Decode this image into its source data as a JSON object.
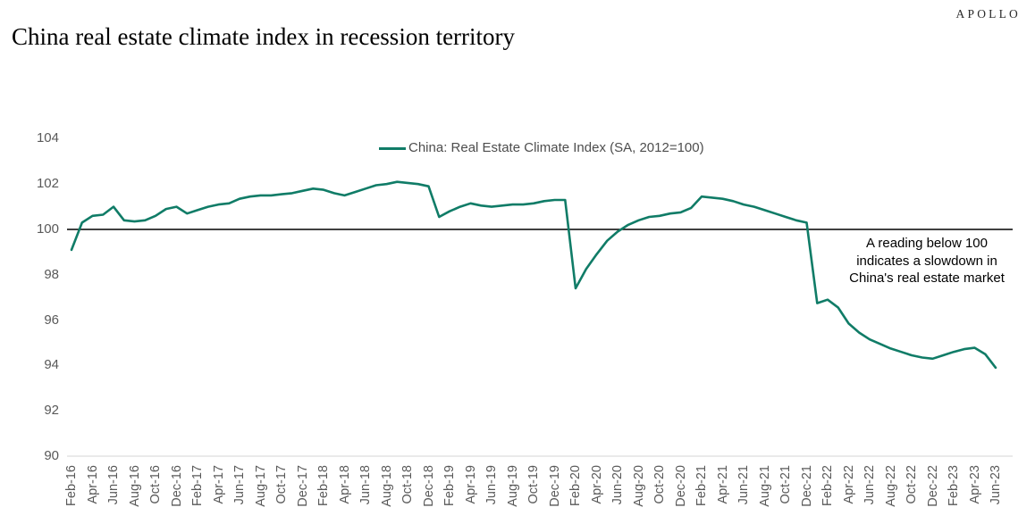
{
  "brand": {
    "logo": "APOLLO"
  },
  "title": "China real estate climate index in recession territory",
  "legend": {
    "label": "China: Real Estate Climate Index (SA, 2012=100)"
  },
  "annotation": {
    "line1": "A reading below 100",
    "line2": "indicates a slowdown in",
    "line3": "China's real estate market"
  },
  "colors": {
    "line": "#107c67",
    "reference_line": "#000000",
    "axis_text": "#595959",
    "axis_line": "#d6d6d6"
  },
  "chart_data": {
    "type": "line",
    "title": "China real estate climate index in recession territory",
    "frequency": "monthly",
    "x_range": [
      "Feb-16",
      "Jun-23"
    ],
    "x_tick_labels": [
      "Feb-16",
      "Apr-16",
      "Jun-16",
      "Aug-16",
      "Oct-16",
      "Dec-16",
      "Feb-17",
      "Apr-17",
      "Jun-17",
      "Aug-17",
      "Oct-17",
      "Dec-17",
      "Feb-18",
      "Apr-18",
      "Jun-18",
      "Aug-18",
      "Oct-18",
      "Dec-18",
      "Feb-19",
      "Apr-19",
      "Jun-19",
      "Aug-19",
      "Oct-19",
      "Dec-19",
      "Feb-20",
      "Apr-20",
      "Jun-20",
      "Aug-20",
      "Oct-20",
      "Dec-20",
      "Feb-21",
      "Apr-21",
      "Jun-21",
      "Aug-21",
      "Oct-21",
      "Dec-21",
      "Feb-22",
      "Apr-22",
      "Jun-22",
      "Aug-22",
      "Oct-22",
      "Dec-22",
      "Feb-23",
      "Apr-23",
      "Jun-23"
    ],
    "x_tick_step_months": 2,
    "y_ticks": [
      104,
      102,
      100,
      98,
      96,
      94,
      92,
      90
    ],
    "ylim": [
      90,
      104
    ],
    "reference_line": 100,
    "grid": false,
    "legend_position": "top-center",
    "series": [
      {
        "name": "China: Real Estate Climate Index (SA, 2012=100)",
        "color": "#107c67",
        "values": [
          99.1,
          100.3,
          100.6,
          100.65,
          101.0,
          100.4,
          100.35,
          100.4,
          100.6,
          100.9,
          101.0,
          100.7,
          100.85,
          101.0,
          101.1,
          101.15,
          101.35,
          101.45,
          101.5,
          101.5,
          101.55,
          101.6,
          101.7,
          101.8,
          101.75,
          101.6,
          101.5,
          101.65,
          101.8,
          101.95,
          102.0,
          102.1,
          102.05,
          102.0,
          101.9,
          100.55,
          100.8,
          101.0,
          101.15,
          101.05,
          101.0,
          101.05,
          101.1,
          101.1,
          101.15,
          101.25,
          101.3,
          101.3,
          97.4,
          98.25,
          98.9,
          99.5,
          99.9,
          100.2,
          100.4,
          100.55,
          100.6,
          100.7,
          100.75,
          100.95,
          101.45,
          101.4,
          101.35,
          101.25,
          101.1,
          101.0,
          100.85,
          100.7,
          100.55,
          100.4,
          100.3,
          96.75,
          96.9,
          96.55,
          95.85,
          95.45,
          95.15,
          94.95,
          94.75,
          94.6,
          94.45,
          94.35,
          94.3,
          94.45,
          94.6,
          94.72,
          94.78,
          94.5,
          93.9
        ]
      }
    ]
  }
}
